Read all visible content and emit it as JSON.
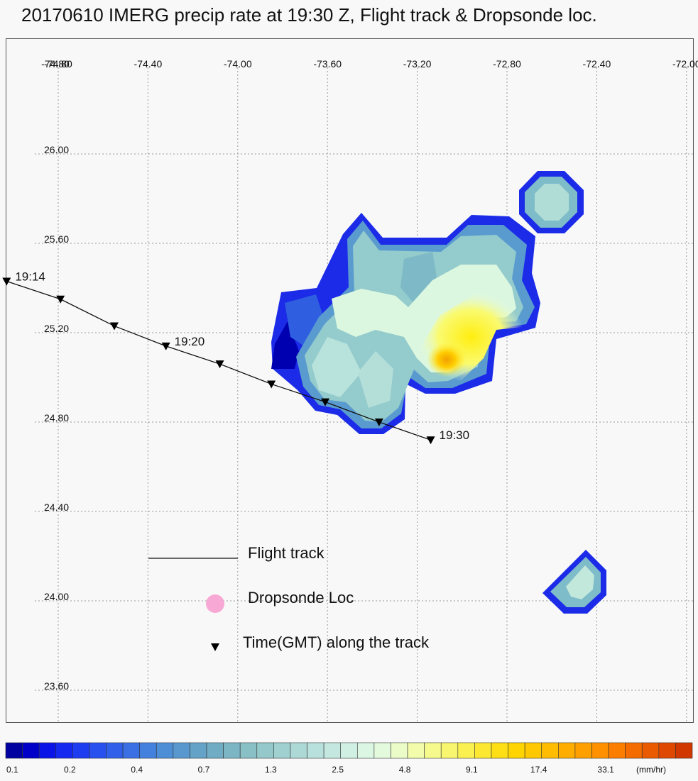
{
  "title": "20170610 IMERG precip rate at 19:30 Z, Flight track & Dropsonde loc.",
  "map": {
    "lon_labels": [
      "-74.80",
      "-74.40",
      "-74.00",
      "-73.60",
      "-73.20",
      "-72.80",
      "-72.40",
      "-72.00"
    ],
    "lat_labels": [
      "26.00",
      "25.60",
      "25.20",
      "24.80",
      "24.40",
      "24.00",
      "23.60"
    ],
    "overlap_label": "-74.80"
  },
  "flight": {
    "times": [
      {
        "label": "19:14",
        "lon": -75.03,
        "lat": 25.43
      },
      {
        "label": "",
        "lon": -74.79,
        "lat": 25.35
      },
      {
        "label": "",
        "lon": -74.55,
        "lat": 25.23
      },
      {
        "label": "19:20",
        "lon": -74.32,
        "lat": 25.14
      },
      {
        "label": "",
        "lon": -74.08,
        "lat": 25.06
      },
      {
        "label": "",
        "lon": -73.85,
        "lat": 24.97
      },
      {
        "label": "",
        "lon": -73.61,
        "lat": 24.89
      },
      {
        "label": "",
        "lon": -73.37,
        "lat": 24.8
      },
      {
        "label": "19:30",
        "lon": -73.14,
        "lat": 24.72
      }
    ]
  },
  "legend": {
    "flight_track": "Flight track",
    "dropsonde": "Dropsonde Loc",
    "time_marker": "Time(GMT) along the track",
    "dropsonde_color": "#f7a8d4"
  },
  "colorbar": {
    "unit": "(mm/hr)",
    "tick_labels": [
      "0.1",
      "0.2",
      "0.4",
      "0.7",
      "1.3",
      "2.5",
      "4.8",
      "9.1",
      "17.4",
      "33.1"
    ],
    "colors": [
      "#0000a0",
      "#0000c8",
      "#0a14e6",
      "#1428f0",
      "#1e3cf0",
      "#2850ee",
      "#3060ea",
      "#3a70e4",
      "#4480de",
      "#4e8ed6",
      "#5898ce",
      "#64a2c8",
      "#70acc4",
      "#7cb6c4",
      "#88c0c6",
      "#94c8ca",
      "#a0d0d0",
      "#acd8d6",
      "#b8e0dc",
      "#c4e8e0",
      "#d0f0e4",
      "#dcf6e4",
      "#e4fadc",
      "#ecfcc8",
      "#f2fcaa",
      "#f6fa8c",
      "#f8f66e",
      "#faf050",
      "#fce832",
      "#fede14",
      "#ffd400",
      "#ffc800",
      "#ffbc00",
      "#ffae00",
      "#ffa000",
      "#ff9000",
      "#fc7e00",
      "#f46c00",
      "#ea5a00",
      "#de4800",
      "#d03800"
    ]
  },
  "precip_cells": [
    {
      "lon": -73.7,
      "lat": 25.4,
      "value": 0.9
    },
    {
      "lon": -73.58,
      "lat": 25.38,
      "value": 1.3
    },
    {
      "lon": -73.45,
      "lat": 25.4,
      "value": 1.5
    },
    {
      "lon": -73.33,
      "lat": 25.4,
      "value": 0.9
    },
    {
      "lon": -73.08,
      "lat": 25.42,
      "value": 2.6
    },
    {
      "lon": -72.85,
      "lat": 25.36,
      "value": 4.8
    },
    {
      "lon": -72.72,
      "lat": 25.3,
      "value": 5.2
    },
    {
      "lon": -73.1,
      "lat": 25.24,
      "value": 6.5
    },
    {
      "lon": -73.0,
      "lat": 25.18,
      "value": 9.1
    },
    {
      "lon": -73.12,
      "lat": 25.1,
      "value": 17.4
    },
    {
      "lon": -73.22,
      "lat": 25.08,
      "value": 12.0
    },
    {
      "lon": -72.85,
      "lat": 25.2,
      "value": 7.0
    },
    {
      "lon": -73.45,
      "lat": 25.2,
      "value": 2.6
    },
    {
      "lon": -73.55,
      "lat": 25.08,
      "value": 1.2
    },
    {
      "lon": -73.7,
      "lat": 25.08,
      "value": 1.5
    },
    {
      "lon": -73.4,
      "lat": 24.98,
      "value": 1.6
    },
    {
      "lon": -73.6,
      "lat": 24.92,
      "value": 1.2
    },
    {
      "lon": -73.35,
      "lat": 24.85,
      "value": 0.8
    },
    {
      "lon": -73.25,
      "lat": 25.55,
      "value": 0.6
    },
    {
      "lon": -73.0,
      "lat": 25.55,
      "value": 0.7
    },
    {
      "lon": -72.75,
      "lat": 25.55,
      "value": 0.6
    },
    {
      "lon": -73.55,
      "lat": 25.6,
      "value": 0.8
    },
    {
      "lon": -72.58,
      "lat": 25.8,
      "value": 1.3
    },
    {
      "lon": -72.45,
      "lat": 24.1,
      "value": 1.5
    }
  ]
}
